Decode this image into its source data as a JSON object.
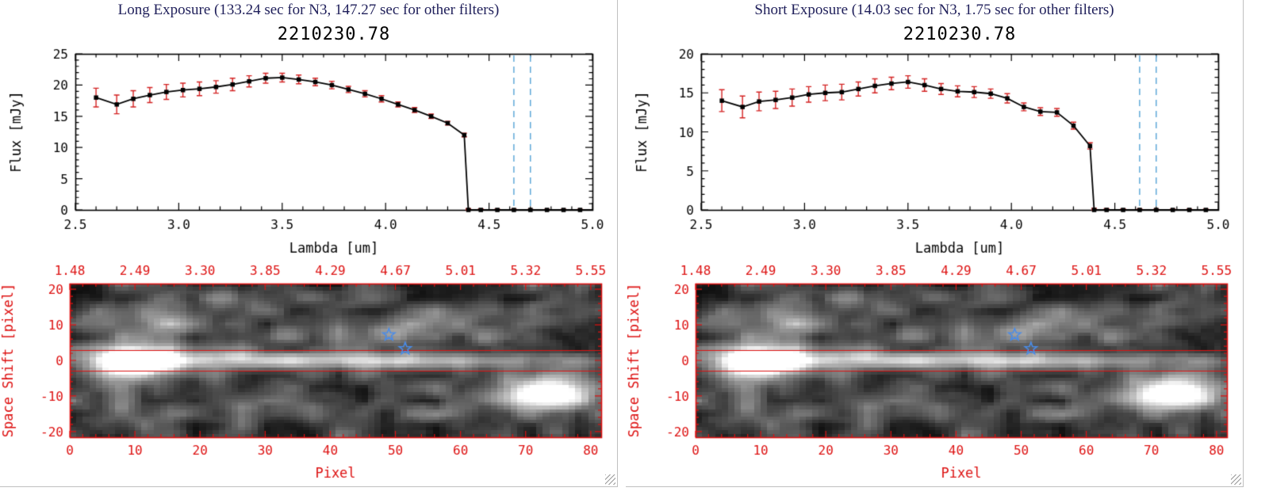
{
  "page": {
    "background": "#ffffff"
  },
  "colors": {
    "header_text": "#1f1f5a",
    "plot_text": "#000000",
    "error_bar": "#d32222",
    "dashed_line": "#5fa8d8",
    "red_axis": "#dd1111",
    "star": "#4a8ce8",
    "panel_border": "#c0c0c0"
  },
  "icons": {
    "resize_grip": "diagonal-lines"
  },
  "panels": [
    {
      "header": "Long Exposure (133.24 sec for N3, 147.27 sec for other filters)",
      "plot_title": "2210230.78"
    },
    {
      "header": "Short Exposure (14.03 sec for N3, 1.75 sec for other filters)",
      "plot_title": "2210230.78"
    }
  ],
  "chart_data": [
    {
      "type": "line",
      "panel_index": 0,
      "title": "2210230.78",
      "xlabel": "Lambda [um]",
      "ylabel": "Flux [mJy]",
      "xlim": [
        2.5,
        5.0
      ],
      "ylim": [
        0,
        25
      ],
      "xticks": [
        "2.5",
        "3.0",
        "3.5",
        "4.0",
        "4.5",
        "5.0"
      ],
      "yticks": [
        "0",
        "5",
        "10",
        "15",
        "20",
        "25"
      ],
      "x": [
        2.6,
        2.7,
        2.78,
        2.86,
        2.94,
        3.02,
        3.1,
        3.18,
        3.26,
        3.34,
        3.42,
        3.5,
        3.58,
        3.66,
        3.74,
        3.82,
        3.9,
        3.98,
        4.06,
        4.14,
        4.22,
        4.3,
        4.38,
        4.4,
        4.46,
        4.54,
        4.62,
        4.7,
        4.78,
        4.86,
        4.94
      ],
      "y": [
        18.0,
        16.9,
        17.8,
        18.4,
        18.9,
        19.2,
        19.4,
        19.7,
        20.1,
        20.6,
        21.1,
        21.2,
        20.9,
        20.5,
        20.0,
        19.3,
        18.6,
        17.8,
        16.9,
        16.0,
        15.0,
        13.9,
        12.0,
        0,
        0,
        0,
        0,
        0,
        0,
        0,
        0
      ],
      "yerr": [
        1.5,
        1.5,
        1.3,
        1.2,
        1.2,
        1.1,
        1.1,
        1.0,
        1.0,
        0.9,
        0.8,
        0.7,
        0.7,
        0.6,
        0.6,
        0.5,
        0.5,
        0.5,
        0.4,
        0.4,
        0.35,
        0.3,
        0.3,
        0.2,
        0.15,
        0.12,
        0.12,
        0.1,
        0.1,
        0.1,
        0.1
      ],
      "dashed_vlines": [
        4.62,
        4.7
      ]
    },
    {
      "type": "line",
      "panel_index": 1,
      "title": "2210230.78",
      "xlabel": "Lambda [um]",
      "ylabel": "Flux [mJy]",
      "xlim": [
        2.5,
        5.0
      ],
      "ylim": [
        0,
        20
      ],
      "xticks": [
        "2.5",
        "3.0",
        "3.5",
        "4.0",
        "4.5",
        "5.0"
      ],
      "yticks": [
        "0",
        "5",
        "10",
        "15",
        "20"
      ],
      "x": [
        2.6,
        2.7,
        2.78,
        2.86,
        2.94,
        3.02,
        3.1,
        3.18,
        3.26,
        3.34,
        3.42,
        3.5,
        3.58,
        3.66,
        3.74,
        3.82,
        3.9,
        3.98,
        4.06,
        4.14,
        4.22,
        4.3,
        4.38,
        4.4,
        4.46,
        4.54,
        4.62,
        4.7,
        4.78,
        4.86,
        4.94
      ],
      "y": [
        14.0,
        13.2,
        13.9,
        14.1,
        14.4,
        14.8,
        15.0,
        15.1,
        15.5,
        15.9,
        16.2,
        16.4,
        16.0,
        15.5,
        15.2,
        15.1,
        14.9,
        14.3,
        13.2,
        12.6,
        12.5,
        10.8,
        8.2,
        0,
        0,
        0,
        0,
        0,
        0,
        0,
        0
      ],
      "yerr": [
        1.4,
        1.4,
        1.2,
        1.1,
        1.1,
        1.0,
        1.0,
        1.0,
        0.9,
        0.9,
        0.8,
        0.8,
        0.8,
        0.7,
        0.7,
        0.7,
        0.6,
        0.6,
        0.5,
        0.5,
        0.5,
        0.45,
        0.4,
        0.2,
        0.15,
        0.12,
        0.12,
        0.1,
        0.1,
        0.1,
        0.1
      ],
      "dashed_vlines": [
        4.62,
        4.7
      ]
    },
    {
      "type": "heatmap",
      "panel_index": 0,
      "xlabel": "Pixel",
      "ylabel": "Space Shift [pixel]",
      "xlim": [
        0,
        81.6
      ],
      "ylim": [
        -21.6,
        21.6
      ],
      "xticks": [
        "0",
        "10",
        "20",
        "30",
        "40",
        "50",
        "60",
        "70",
        "80"
      ],
      "yticks": [
        "-20",
        "-10",
        "0",
        "10",
        "20"
      ],
      "top_axis_labels": [
        "1.48",
        "2.49",
        "3.30",
        "3.85",
        "4.29",
        "4.67",
        "5.01",
        "5.32",
        "5.55"
      ],
      "aperture_lines_y": [
        3,
        -3
      ],
      "stars": [
        {
          "x": 49,
          "y": 7.2
        },
        {
          "x": 51.5,
          "y": 3.3
        }
      ],
      "grid": {
        "cols": 82,
        "rows": 44,
        "seed": 7,
        "noise_amp": 0.38
      },
      "features": [
        {
          "x": 9.5,
          "y": -0.5,
          "sx": 3.2,
          "sy": 2.4,
          "a": 1.3
        },
        {
          "x": 11,
          "y": 0,
          "sx": 8,
          "sy": 4.5,
          "a": 0.3
        },
        {
          "x": 28,
          "y": 0,
          "sx": 20,
          "sy": 1.7,
          "a": 0.48
        },
        {
          "x": 58,
          "y": 0,
          "sx": 26,
          "sy": 1.5,
          "a": 0.3
        },
        {
          "x": 72.5,
          "y": -9.5,
          "sx": 4.5,
          "sy": 2.8,
          "a": 0.85
        },
        {
          "x": 71,
          "y": -10,
          "sx": 8,
          "sy": 5,
          "a": 0.22
        },
        {
          "x": 14,
          "y": 12,
          "sx": 3,
          "sy": 3.5,
          "a": 0.34
        },
        {
          "x": 24,
          "y": 16,
          "sx": 4,
          "sy": 3,
          "a": 0.2
        },
        {
          "x": 38,
          "y": 9,
          "sx": 5,
          "sy": 3,
          "a": 0.16
        },
        {
          "x": 49.5,
          "y": 7,
          "sx": 3,
          "sy": 2.4,
          "a": 0.26
        },
        {
          "x": 57,
          "y": 11,
          "sx": 4,
          "sy": 3,
          "a": 0.17
        },
        {
          "x": 8,
          "y": -15,
          "sx": 4,
          "sy": 3,
          "a": 0.2
        },
        {
          "x": 31,
          "y": -13,
          "sx": 5,
          "sy": 3,
          "a": 0.13
        },
        {
          "x": 65,
          "y": 7,
          "sx": 4,
          "sy": 3,
          "a": 0.13
        },
        {
          "x": 77,
          "y": 14,
          "sx": 4,
          "sy": 3,
          "a": 0.14
        }
      ]
    },
    {
      "type": "heatmap",
      "panel_index": 1,
      "xlabel": "Pixel",
      "ylabel": "Space Shift [pixel]",
      "xlim": [
        0,
        81.6
      ],
      "ylim": [
        -21.6,
        21.6
      ],
      "xticks": [
        "0",
        "10",
        "20",
        "30",
        "40",
        "50",
        "60",
        "70",
        "80"
      ],
      "yticks": [
        "-20",
        "-10",
        "0",
        "10",
        "20"
      ],
      "top_axis_labels": [
        "1.48",
        "2.49",
        "3.30",
        "3.85",
        "4.29",
        "4.67",
        "5.01",
        "5.32",
        "5.55"
      ],
      "aperture_lines_y": [
        3,
        -3
      ],
      "stars": [
        {
          "x": 49,
          "y": 7.2
        },
        {
          "x": 51.5,
          "y": 3.3
        }
      ],
      "grid": {
        "cols": 82,
        "rows": 44,
        "seed": 7,
        "noise_amp": 0.38
      },
      "features": [
        {
          "x": 9.5,
          "y": -0.5,
          "sx": 3.2,
          "sy": 2.4,
          "a": 1.3
        },
        {
          "x": 11,
          "y": 0,
          "sx": 8,
          "sy": 4.5,
          "a": 0.3
        },
        {
          "x": 28,
          "y": 0,
          "sx": 20,
          "sy": 1.7,
          "a": 0.48
        },
        {
          "x": 58,
          "y": 0,
          "sx": 26,
          "sy": 1.5,
          "a": 0.3
        },
        {
          "x": 72.5,
          "y": -9.5,
          "sx": 4.5,
          "sy": 2.8,
          "a": 0.85
        },
        {
          "x": 71,
          "y": -10,
          "sx": 8,
          "sy": 5,
          "a": 0.22
        },
        {
          "x": 14,
          "y": 12,
          "sx": 3,
          "sy": 3.5,
          "a": 0.34
        },
        {
          "x": 24,
          "y": 16,
          "sx": 4,
          "sy": 3,
          "a": 0.2
        },
        {
          "x": 38,
          "y": 9,
          "sx": 5,
          "sy": 3,
          "a": 0.16
        },
        {
          "x": 49.5,
          "y": 7,
          "sx": 3,
          "sy": 2.4,
          "a": 0.26
        },
        {
          "x": 57,
          "y": 11,
          "sx": 4,
          "sy": 3,
          "a": 0.17
        },
        {
          "x": 8,
          "y": -15,
          "sx": 4,
          "sy": 3,
          "a": 0.2
        },
        {
          "x": 31,
          "y": -13,
          "sx": 5,
          "sy": 3,
          "a": 0.13
        },
        {
          "x": 65,
          "y": 7,
          "sx": 4,
          "sy": 3,
          "a": 0.13
        },
        {
          "x": 77,
          "y": 14,
          "sx": 4,
          "sy": 3,
          "a": 0.14
        }
      ]
    }
  ]
}
